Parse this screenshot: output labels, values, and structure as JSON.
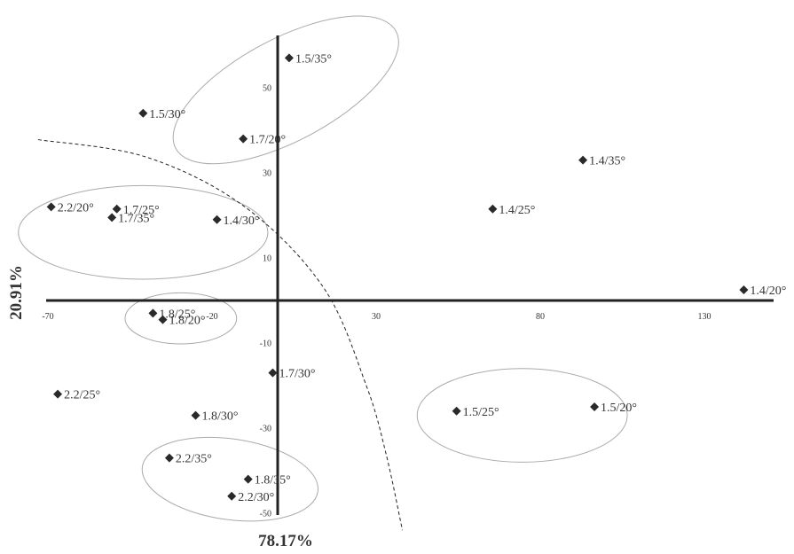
{
  "chart_data": {
    "type": "scatter",
    "title": "",
    "xlabel": "78.17%",
    "ylabel": "20.91%",
    "xlim": [
      -70,
      150
    ],
    "ylim": [
      -50,
      63
    ],
    "x_ticks": [
      -70,
      -20,
      30,
      80,
      130
    ],
    "y_ticks": [
      -50,
      -30,
      -10,
      10,
      30,
      50
    ],
    "x_tick_labels": [
      "-70",
      "-20",
      "30",
      "80",
      "130"
    ],
    "y_tick_labels": [
      "-50",
      "-30",
      "-10",
      "10",
      "30",
      "50"
    ],
    "grid": false,
    "marker": "diamond",
    "points": [
      {
        "label": "1.5/35°",
        "x": 3.5,
        "y": 57
      },
      {
        "label": "1.5/30°",
        "x": -41,
        "y": 44
      },
      {
        "label": "1.7/20°",
        "x": -10.5,
        "y": 38
      },
      {
        "label": "1.4/35°",
        "x": 93,
        "y": 33
      },
      {
        "label": "2.2/20°",
        "x": -69,
        "y": 22
      },
      {
        "label": "1.7/25°",
        "x": -49,
        "y": 21.5
      },
      {
        "label": "1.7/35°",
        "x": -50.5,
        "y": 19.5
      },
      {
        "label": "1.4/30°",
        "x": -18.5,
        "y": 19
      },
      {
        "label": "1.4/25°",
        "x": 65.5,
        "y": 21.5
      },
      {
        "label": "1.4/20°",
        "x": 142,
        "y": 2.5
      },
      {
        "label": "1.8/25°",
        "x": -38,
        "y": -3
      },
      {
        "label": "1.8/20°",
        "x": -35,
        "y": -4.5
      },
      {
        "label": "1.7/30°",
        "x": -1.5,
        "y": -17
      },
      {
        "label": "2.2/25°",
        "x": -67,
        "y": -22
      },
      {
        "label": "1.8/30°",
        "x": -25,
        "y": -27
      },
      {
        "label": "1.5/25°",
        "x": 54.5,
        "y": -26
      },
      {
        "label": "1.5/20°",
        "x": 96.5,
        "y": -25
      },
      {
        "label": "2.2/35°",
        "x": -33,
        "y": -37
      },
      {
        "label": "1.8/35°",
        "x": -9,
        "y": -42
      },
      {
        "label": "2.2/30°",
        "x": -14,
        "y": -46
      }
    ],
    "ellipses": [
      {
        "cx": 2.5,
        "cy": 49.5,
        "rx": 38,
        "ry": 12,
        "angle": -28
      },
      {
        "cx": -41,
        "cy": 16,
        "rx": 38,
        "ry": 11,
        "angle": 0
      },
      {
        "cx": -29.5,
        "cy": -4.2,
        "rx": 17,
        "ry": 6,
        "angle": 0
      },
      {
        "cx": -14.5,
        "cy": -42,
        "rx": 27,
        "ry": 9.5,
        "angle": 8
      },
      {
        "cx": 74.5,
        "cy": -27,
        "rx": 32,
        "ry": 11,
        "angle": 0
      }
    ],
    "boundary_curve": [
      [
        -73,
        37.8
      ],
      [
        -40,
        33.7
      ],
      [
        -10,
        22
      ],
      [
        14,
        3
      ],
      [
        27,
        -20
      ],
      [
        33,
        -36
      ],
      [
        38,
        -54
      ]
    ]
  }
}
